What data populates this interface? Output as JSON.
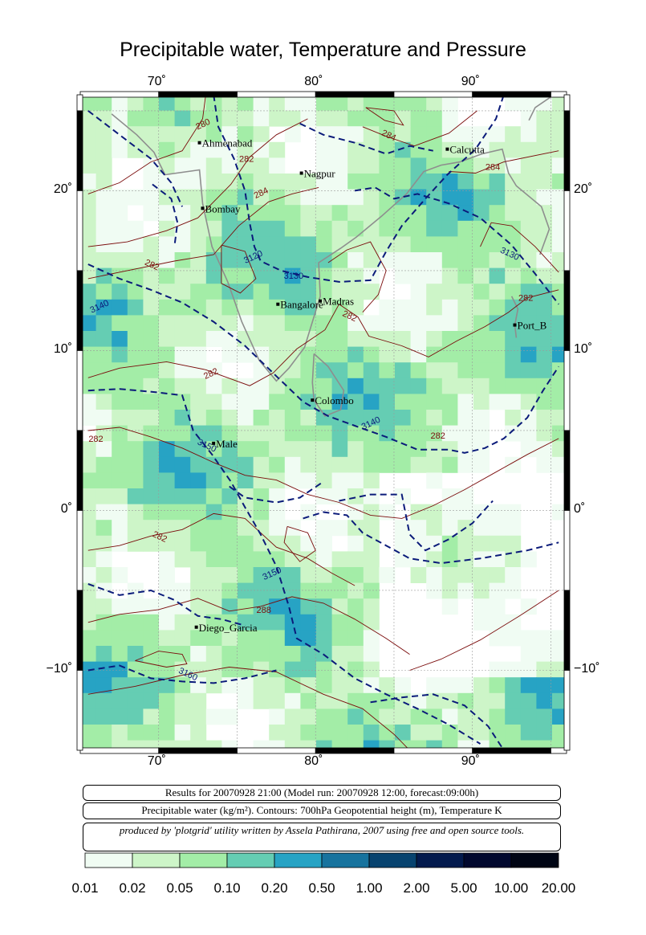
{
  "title": "Precipitable water, Temperature and Pressure",
  "axes": {
    "lon_ticks": [
      {
        "value": 70,
        "label": "70˚"
      },
      {
        "value": 80,
        "label": "80˚"
      },
      {
        "value": 90,
        "label": "90˚"
      }
    ],
    "lat_ticks": [
      {
        "value": 20,
        "label": "20˚"
      },
      {
        "value": 10,
        "label": "10˚"
      },
      {
        "value": 0,
        "label": "0˚"
      },
      {
        "value": -10,
        "label": "−10˚"
      }
    ],
    "lon_range": [
      65,
      96
    ],
    "lat_range": [
      -15,
      26
    ]
  },
  "places": [
    {
      "name": "Ahmenabad",
      "lon": 72.6,
      "lat": 23.0
    },
    {
      "name": "Calcutta",
      "lon": 88.4,
      "lat": 22.6
    },
    {
      "name": "Nagpur",
      "lon": 79.1,
      "lat": 21.1
    },
    {
      "name": "Bombay",
      "lon": 72.8,
      "lat": 18.9
    },
    {
      "name": "Bangalore",
      "lon": 77.6,
      "lat": 12.9
    },
    {
      "name": "Madras",
      "lon": 80.3,
      "lat": 13.1
    },
    {
      "name": "Port_B",
      "lon": 92.7,
      "lat": 11.6
    },
    {
      "name": "Colombo",
      "lon": 79.8,
      "lat": 6.9
    },
    {
      "name": "Male",
      "lon": 73.5,
      "lat": 4.2
    },
    {
      "name": "Diego_Garcia",
      "lon": 72.4,
      "lat": -7.3
    }
  ],
  "contour_labels": [
    {
      "text": "280",
      "lon": 72.9,
      "lat": 24.0
    },
    {
      "text": "282",
      "lon": 75.6,
      "lat": 21.8
    },
    {
      "text": "284",
      "lon": 84.6,
      "lat": 23.3
    },
    {
      "text": "284",
      "lon": 76.6,
      "lat": 19.7
    },
    {
      "text": "284",
      "lon": 91.3,
      "lat": 21.3
    },
    {
      "text": "282",
      "lon": 69.5,
      "lat": 15.2
    },
    {
      "text": "3120",
      "lon": 76.1,
      "lat": 15.7
    },
    {
      "text": "3130",
      "lon": 78.6,
      "lat": 14.5
    },
    {
      "text": "3130",
      "lon": 92.3,
      "lat": 15.9
    },
    {
      "text": "3140",
      "lon": 66.3,
      "lat": 12.6
    },
    {
      "text": "282",
      "lon": 93.4,
      "lat": 13.1
    },
    {
      "text": "282",
      "lon": 82.1,
      "lat": 12.0
    },
    {
      "text": "282",
      "lon": 73.4,
      "lat": 8.4
    },
    {
      "text": "282",
      "lon": 66.0,
      "lat": 4.3
    },
    {
      "text": "3150",
      "lon": 73.0,
      "lat": 3.9
    },
    {
      "text": "3140",
      "lon": 83.6,
      "lat": 5.3
    },
    {
      "text": "282",
      "lon": 87.8,
      "lat": 4.5
    },
    {
      "text": "282",
      "lon": 70.0,
      "lat": -1.8
    },
    {
      "text": "3150",
      "lon": 77.3,
      "lat": -4.1
    },
    {
      "text": "288",
      "lon": 76.7,
      "lat": -6.4
    },
    {
      "text": "3160",
      "lon": 71.8,
      "lat": -10.4
    }
  ],
  "info": {
    "run": "Results for 20070928 21:00 (Model run: 20070928 12:00, forecast:09:00h)",
    "variables": "Precipitable water (kg/m²).  Contours: 700hPa Geopotential height (m), Temperature K",
    "credit": "produced by 'plotgrid' utility written by Assela Pathirana, 2007 using free and open source tools."
  },
  "colorbar": {
    "labels": [
      "0.01",
      "0.02",
      "0.05",
      "0.10",
      "0.20",
      "0.50",
      "1.00",
      "2.00",
      "5.00",
      "10.00",
      "20.00"
    ],
    "colors": [
      "#f0fcf3",
      "#cdf5c8",
      "#a3eda7",
      "#65cdb3",
      "#27a3c4",
      "#17739e",
      "#07436f",
      "#031a4d",
      "#01082e",
      "#000514"
    ]
  },
  "colors": {
    "geopotential_contour": "#0b1b7a",
    "temperature_contour": "#7a0b0b",
    "coastline": "#8e8e8e",
    "contour_label_temperature": "#7a0b0b",
    "contour_label_geopotential": "#0b1b7a"
  }
}
